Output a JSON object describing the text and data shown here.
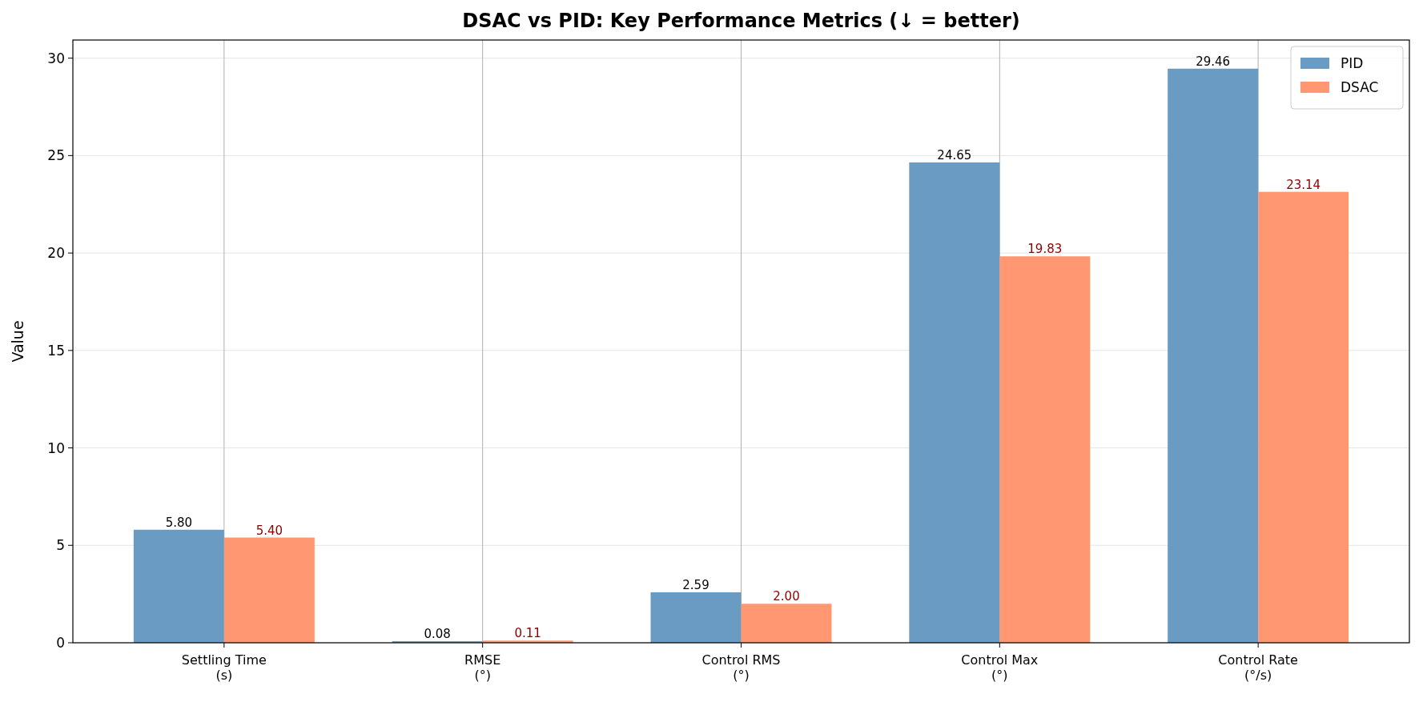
{
  "chart_data": {
    "type": "bar",
    "title": "DSAC vs PID: Key Performance Metrics (↓ = better)",
    "ylabel": "Value",
    "categories": [
      "Settling Time\n(s)",
      "RMSE\n(°)",
      "Control RMS\n(°)",
      "Control Max\n(°)",
      "Control Rate\n(°/s)"
    ],
    "series": [
      {
        "name": "PID",
        "color": "#6a9bc3",
        "values": [
          5.8,
          0.08,
          2.59,
          24.65,
          29.46
        ],
        "value_labels": [
          "5.80",
          "0.08",
          "2.59",
          "24.65",
          "29.46"
        ]
      },
      {
        "name": "DSAC",
        "color": "#ff9872",
        "values": [
          5.4,
          0.11,
          2.0,
          19.83,
          23.14
        ],
        "value_labels": [
          "5.40",
          "0.11",
          "2.00",
          "19.83",
          "23.14"
        ]
      }
    ],
    "ylim": [
      0,
      30.93
    ],
    "yticks": [
      0,
      5,
      10,
      15,
      20,
      25,
      30
    ],
    "grid": true,
    "legend": "top right"
  }
}
